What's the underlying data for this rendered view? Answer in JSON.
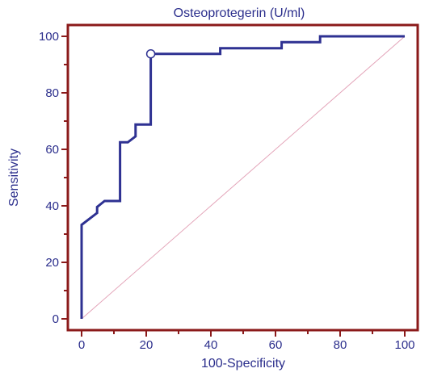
{
  "chart_data": {
    "type": "line",
    "title": "Osteoprotegerin (U/ml)",
    "xlabel": "100-Specificity",
    "ylabel": "Sensitivity",
    "xlim": [
      0,
      100
    ],
    "ylim": [
      0,
      100
    ],
    "x_ticks": [
      0,
      20,
      40,
      60,
      80,
      100
    ],
    "y_ticks": [
      0,
      20,
      40,
      60,
      80,
      100
    ],
    "series": [
      {
        "values_xy": [
          [
            0,
            0
          ],
          [
            0,
            33.3
          ],
          [
            4.8,
            37.5
          ],
          [
            4.8,
            39.6
          ],
          [
            7.1,
            41.7
          ],
          [
            11.9,
            41.7
          ],
          [
            11.9,
            43.8
          ],
          [
            11.9,
            62.5
          ],
          [
            14.3,
            62.5
          ],
          [
            16.7,
            64.6
          ],
          [
            16.7,
            68.8
          ],
          [
            21.4,
            68.8
          ],
          [
            21.4,
            93.8
          ],
          [
            42.9,
            93.8
          ],
          [
            42.9,
            95.8
          ],
          [
            61.9,
            95.8
          ],
          [
            61.9,
            97.9
          ],
          [
            73.8,
            97.9
          ],
          [
            73.8,
            100
          ],
          [
            100,
            100
          ]
        ]
      }
    ],
    "diagonal": [
      [
        0,
        0
      ],
      [
        100,
        100
      ]
    ],
    "highlighted_point": [
      21.4,
      93.8
    ],
    "colors": {
      "roc": "#2e3192",
      "axes_frame": "#8b1a1a",
      "diagonal": "#e3a3b8",
      "text": "#2b2e8c",
      "marker_fill": "#ffffff"
    },
    "grid": false
  }
}
